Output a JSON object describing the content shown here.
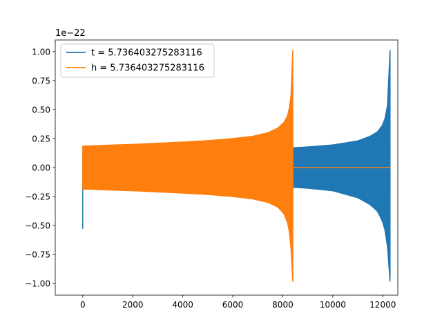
{
  "chart_data": {
    "type": "line",
    "title": "",
    "xlabel": "",
    "ylabel": "",
    "y_offset_label": "1e−22",
    "xlim": [
      -1100,
      12600
    ],
    "ylim": [
      -1.1,
      1.1
    ],
    "x_ticks": [
      0,
      2000,
      4000,
      6000,
      8000,
      10000,
      12000
    ],
    "x_tick_labels": [
      "0",
      "2000",
      "4000",
      "6000",
      "8000",
      "10000",
      "12000"
    ],
    "y_ticks": [
      1.0,
      0.75,
      0.5,
      0.25,
      0.0,
      -0.25,
      -0.5,
      -0.75,
      -1.0
    ],
    "y_tick_labels": [
      "1.00",
      "0.75",
      "0.50",
      "0.25",
      "0.00",
      "−0.25",
      "−0.50",
      "−0.75",
      "−1.00"
    ],
    "grid": false,
    "legend_position": "top-left",
    "series": [
      {
        "name": "t = 5.736403275283116",
        "color": "#1f77b4",
        "style": "chirp_envelope",
        "spike": {
          "x": 0,
          "upper": 0.12,
          "lower": -0.53
        },
        "upper_envelope": {
          "x": [
            0,
            2000,
            4000,
            6000,
            8000,
            9000,
            10000,
            11000,
            11500,
            11800,
            12000,
            12100,
            12200,
            12260,
            12290
          ],
          "y": [
            0.115,
            0.125,
            0.135,
            0.147,
            0.165,
            0.178,
            0.195,
            0.23,
            0.27,
            0.31,
            0.37,
            0.43,
            0.55,
            0.72,
            1.01
          ]
        },
        "lower_envelope": {
          "x": [
            0,
            2000,
            4000,
            6000,
            8000,
            9000,
            10000,
            11000,
            11500,
            11800,
            12000,
            12100,
            12200,
            12260,
            12290
          ],
          "y": [
            -0.115,
            -0.125,
            -0.135,
            -0.147,
            -0.165,
            -0.178,
            -0.2,
            -0.26,
            -0.32,
            -0.38,
            -0.47,
            -0.55,
            -0.7,
            -0.85,
            -0.98
          ]
        },
        "tail": {
          "x": [
            12290,
            12310
          ],
          "y": [
            0.0,
            0.0
          ]
        }
      },
      {
        "name": "h = 5.736403275283116",
        "color": "#ff7f0e",
        "style": "chirp_envelope",
        "upper_envelope": {
          "x": [
            0,
            1000,
            2000,
            3000,
            4000,
            5000,
            6000,
            6800,
            7400,
            7800,
            8050,
            8200,
            8300,
            8360,
            8400
          ],
          "y": [
            0.185,
            0.193,
            0.2,
            0.21,
            0.22,
            0.232,
            0.25,
            0.27,
            0.3,
            0.34,
            0.39,
            0.45,
            0.55,
            0.7,
            1.01
          ]
        },
        "lower_envelope": {
          "x": [
            0,
            1000,
            2000,
            3000,
            4000,
            5000,
            6000,
            6800,
            7400,
            7800,
            8050,
            8200,
            8300,
            8360,
            8400
          ],
          "y": [
            -0.185,
            -0.193,
            -0.2,
            -0.21,
            -0.22,
            -0.232,
            -0.25,
            -0.27,
            -0.3,
            -0.34,
            -0.4,
            -0.48,
            -0.6,
            -0.8,
            -0.98
          ]
        },
        "tail": {
          "x": [
            8400,
            12310
          ],
          "y": [
            0.0,
            0.0
          ]
        }
      }
    ]
  }
}
